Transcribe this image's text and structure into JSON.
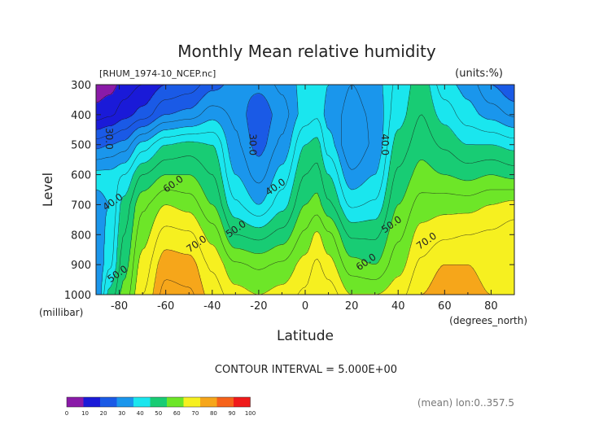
{
  "chart_data": {
    "type": "heatmap",
    "title": "Monthly Mean relative humidity",
    "file_label": "[RHUM_1974-10_NCEP.nc]",
    "units_label": "(units:%)",
    "ylabel": "Level",
    "yunit": "(millibar)",
    "xlabel": "Latitude",
    "xunit": "(degrees_north)",
    "x_ticks": [
      -80,
      -60,
      -40,
      -20,
      0,
      20,
      40,
      60,
      80
    ],
    "y_ticks": [
      300,
      400,
      500,
      600,
      700,
      800,
      900,
      1000
    ],
    "xlim": [
      -90,
      90
    ],
    "ylim": [
      1000,
      300
    ],
    "contour_interval_text": "CONTOUR INTERVAL = 5.000E+00",
    "footer_text": "(mean) lon:0..357.5",
    "colorbar": {
      "ticks": [
        "0",
        "10",
        "20",
        "30",
        "40",
        "50",
        "60",
        "70",
        "80",
        "90",
        "100"
      ],
      "colors": [
        "#8a1aa8",
        "#1a1ad8",
        "#1a5ae6",
        "#1a96ec",
        "#1ae6ee",
        "#18cc74",
        "#6de628",
        "#f6f020",
        "#f6a61a",
        "#f6621a",
        "#f01a1a"
      ]
    },
    "contour_labels": [
      {
        "text": "30.0",
        "lat": -90,
        "p": 480
      },
      {
        "text": "40.0",
        "lat": -82,
        "p": 700
      },
      {
        "text": "50.0",
        "lat": -80,
        "p": 940
      },
      {
        "text": "60.0",
        "lat": -56,
        "p": 640
      },
      {
        "text": "70.0",
        "lat": -46,
        "p": 840
      },
      {
        "text": "50.0",
        "lat": -29,
        "p": 790
      },
      {
        "text": "30.0",
        "lat": -24,
        "p": 500
      },
      {
        "text": "40.0",
        "lat": -12,
        "p": 650
      },
      {
        "text": "60.0",
        "lat": 27,
        "p": 900
      },
      {
        "text": "40.0",
        "lat": 33,
        "p": 500
      },
      {
        "text": "50.0",
        "lat": 38,
        "p": 775
      },
      {
        "text": "70.0",
        "lat": 53,
        "p": 830
      }
    ],
    "profiles": [
      {
        "lat": -90,
        "rh": [
          7,
          12,
          28,
          42,
          38,
          36,
          35,
          35
        ]
      },
      {
        "lat": -84,
        "rh": [
          8,
          14,
          30,
          42,
          40,
          42,
          44,
          52
        ]
      },
      {
        "lat": -78,
        "rh": [
          12,
          18,
          32,
          45,
          52,
          55,
          58,
          62
        ]
      },
      {
        "lat": -70,
        "rh": [
          15,
          22,
          42,
          55,
          64,
          68,
          72,
          75
        ]
      },
      {
        "lat": -60,
        "rh": [
          20,
          30,
          50,
          60,
          70,
          77,
          83,
          87
        ]
      },
      {
        "lat": -50,
        "rh": [
          22,
          32,
          52,
          60,
          68,
          76,
          82,
          86
        ]
      },
      {
        "lat": -40,
        "rh": [
          28,
          38,
          50,
          55,
          60,
          68,
          74,
          78
        ]
      },
      {
        "lat": -30,
        "rh": [
          32,
          34,
          36,
          40,
          46,
          55,
          66,
          72
        ]
      },
      {
        "lat": -20,
        "rh": [
          32,
          25,
          28,
          33,
          40,
          53,
          64,
          70
        ]
      },
      {
        "lat": -10,
        "rh": [
          36,
          33,
          36,
          42,
          48,
          57,
          66,
          72
        ]
      },
      {
        "lat": 0,
        "rh": [
          42,
          42,
          50,
          55,
          60,
          66,
          72,
          76
        ]
      },
      {
        "lat": 5,
        "rh": [
          44,
          44,
          52,
          57,
          62,
          71,
          76,
          80
        ]
      },
      {
        "lat": 10,
        "rh": [
          40,
          38,
          42,
          50,
          56,
          66,
          72,
          78
        ]
      },
      {
        "lat": 20,
        "rh": [
          35,
          33,
          30,
          36,
          44,
          54,
          62,
          70
        ]
      },
      {
        "lat": 30,
        "rh": [
          38,
          36,
          36,
          40,
          46,
          54,
          60,
          70
        ]
      },
      {
        "lat": 40,
        "rh": [
          46,
          48,
          52,
          56,
          60,
          64,
          68,
          73
        ]
      },
      {
        "lat": 50,
        "rh": [
          53,
          55,
          58,
          62,
          67,
          72,
          76,
          80
        ]
      },
      {
        "lat": 60,
        "rh": [
          42,
          48,
          54,
          60,
          68,
          74,
          80,
          84
        ]
      },
      {
        "lat": 70,
        "rh": [
          38,
          42,
          50,
          58,
          68,
          75,
          80,
          82
        ]
      },
      {
        "lat": 80,
        "rh": [
          30,
          38,
          50,
          60,
          70,
          76,
          78,
          80
        ]
      },
      {
        "lat": 90,
        "rh": [
          25,
          34,
          48,
          58,
          72,
          78,
          80,
          76
        ]
      }
    ]
  }
}
